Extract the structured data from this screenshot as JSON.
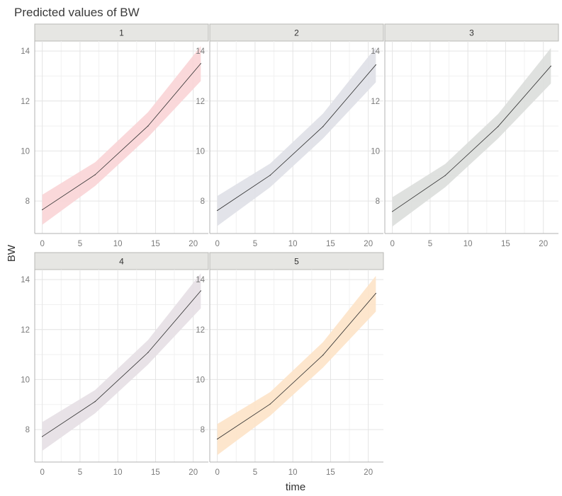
{
  "chart_data": {
    "type": "line",
    "title": "Predicted values of BW",
    "xlabel": "time",
    "ylabel": "BW",
    "xlim": [
      -1,
      22
    ],
    "ylim": [
      6.7,
      14.4
    ],
    "x_ticks": [
      0,
      5,
      10,
      15,
      20
    ],
    "y_ticks": [
      8,
      10,
      12,
      14
    ],
    "grid": true,
    "x": [
      0,
      7,
      14,
      21
    ],
    "series": [
      {
        "panel": "1",
        "fill": "#f9d4d6",
        "values": [
          7.65,
          9.05,
          11.0,
          13.5
        ],
        "lower": [
          7.05,
          8.6,
          10.55,
          12.8
        ],
        "upper": [
          8.25,
          9.55,
          11.55,
          14.2
        ]
      },
      {
        "panel": "2",
        "fill": "#dfe0e7",
        "values": [
          7.62,
          9.03,
          10.98,
          13.45
        ],
        "lower": [
          7.0,
          8.55,
          10.5,
          12.75
        ],
        "upper": [
          8.2,
          9.5,
          11.5,
          14.15
        ]
      },
      {
        "panel": "3",
        "fill": "#dcdedb",
        "values": [
          7.58,
          9.02,
          10.98,
          13.4
        ],
        "lower": [
          6.98,
          8.55,
          10.5,
          12.7
        ],
        "upper": [
          8.15,
          9.48,
          11.48,
          14.12
        ]
      },
      {
        "panel": "4",
        "fill": "#e5dfe4",
        "values": [
          7.72,
          9.12,
          11.08,
          13.55
        ],
        "lower": [
          7.15,
          8.65,
          10.6,
          12.85
        ],
        "upper": [
          8.3,
          9.58,
          11.58,
          14.25
        ]
      },
      {
        "panel": "5",
        "fill": "#fde3c8",
        "values": [
          7.62,
          9.02,
          10.98,
          13.45
        ],
        "lower": [
          6.98,
          8.55,
          10.48,
          12.72
        ],
        "upper": [
          8.22,
          9.5,
          11.5,
          14.15
        ]
      }
    ]
  }
}
